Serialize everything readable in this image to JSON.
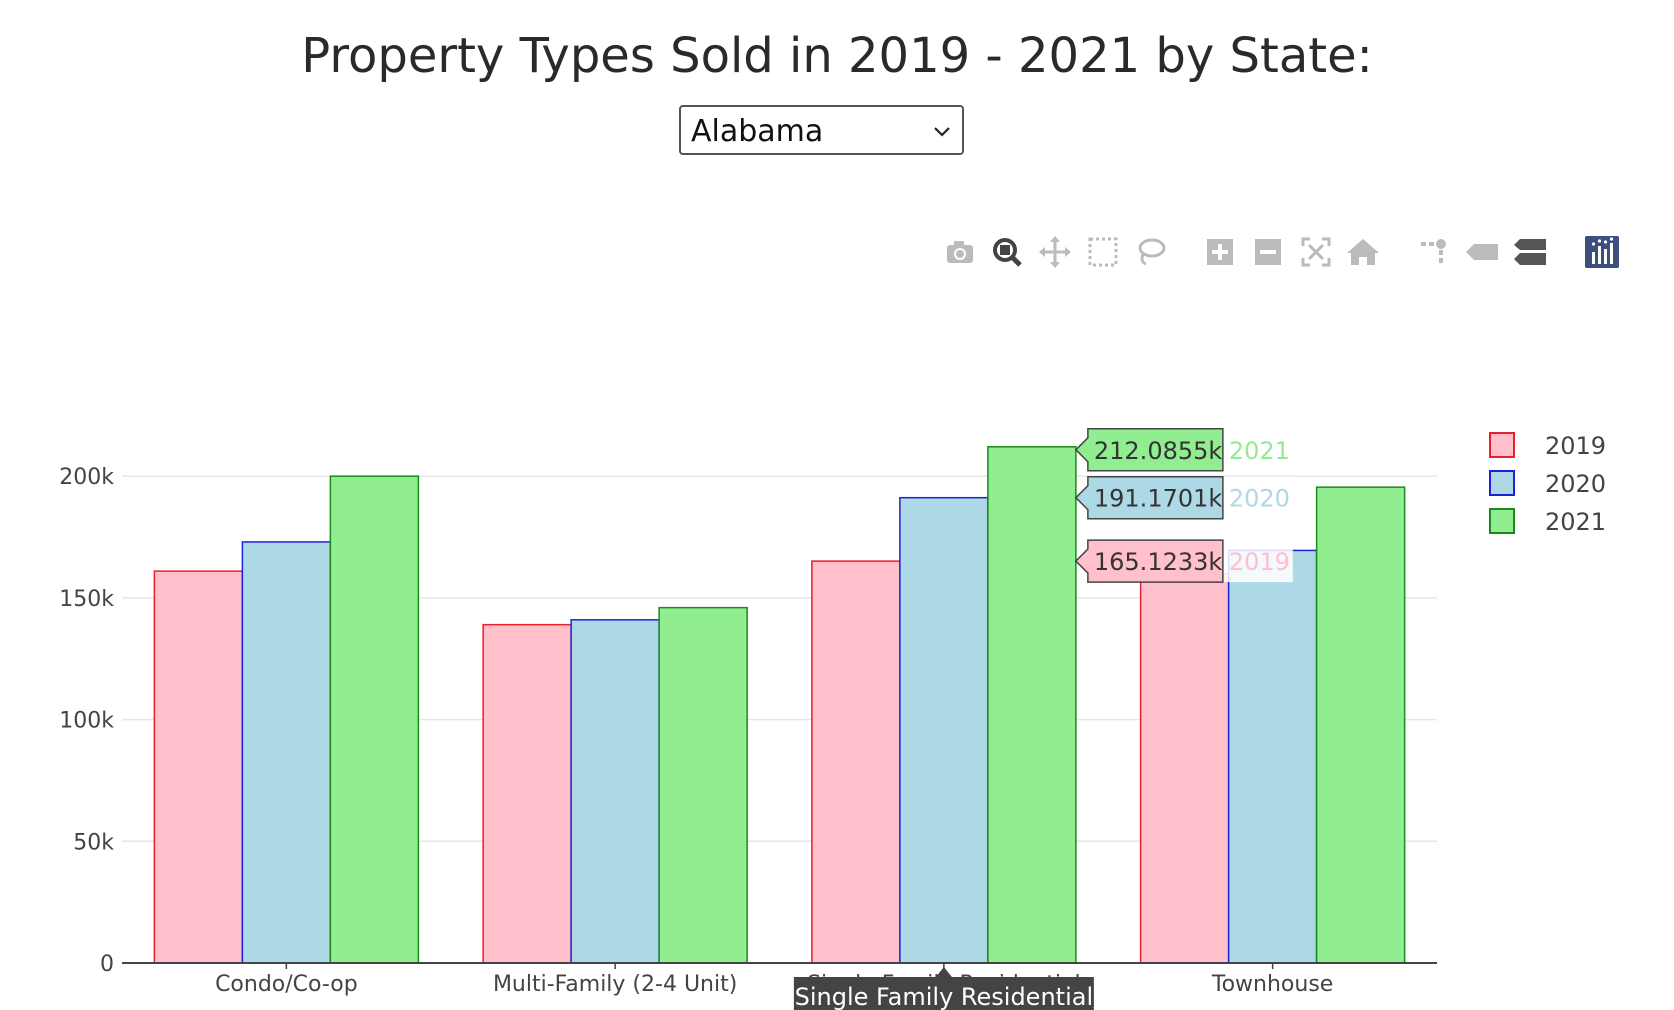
{
  "header": {
    "title": "Property Types Sold in 2019 - 2021 by State:"
  },
  "state_select": {
    "value": "Alabama"
  },
  "modebar": {
    "buttons": [
      {
        "name": "camera-icon",
        "active": false
      },
      {
        "name": "zoom-icon",
        "active": true
      },
      {
        "name": "pan-icon",
        "active": false
      },
      {
        "name": "box-select-icon",
        "active": false
      },
      {
        "name": "lasso-select-icon",
        "active": false
      },
      {
        "name": "zoom-in-icon",
        "active": false
      },
      {
        "name": "zoom-out-icon",
        "active": false
      },
      {
        "name": "autoscale-icon",
        "active": false
      },
      {
        "name": "reset-axes-icon",
        "active": false
      },
      {
        "name": "spike-lines-icon",
        "active": false
      },
      {
        "name": "hover-closest-icon",
        "active": false
      },
      {
        "name": "hover-compare-icon",
        "active": false
      },
      {
        "name": "plotly-logo-icon",
        "active": false
      }
    ]
  },
  "chart_data": {
    "type": "bar",
    "categories": [
      "Condo/Co-op",
      "Multi-Family (2-4 Unit)",
      "Single Family Residential",
      "Townhouse"
    ],
    "series": [
      {
        "name": "2019",
        "values": [
          161000,
          139000,
          165123.3,
          160000
        ],
        "fill": "#ffc0cb",
        "stroke": "#e8202a"
      },
      {
        "name": "2020",
        "values": [
          173000,
          141000,
          191170.1,
          169500
        ],
        "fill": "#add8e6",
        "stroke": "#2020e0"
      },
      {
        "name": "2021",
        "values": [
          200000,
          146000,
          212085.5,
          195500
        ],
        "fill": "#90ee90",
        "stroke": "#1a8a1a"
      }
    ],
    "yticks": [
      {
        "value": 0,
        "label": "0"
      },
      {
        "value": 50000,
        "label": "50k"
      },
      {
        "value": 100000,
        "label": "100k"
      },
      {
        "value": 150000,
        "label": "150k"
      },
      {
        "value": 200000,
        "label": "200k"
      }
    ],
    "ylim": [
      0,
      230000
    ],
    "grid": true,
    "legend_position": "top-right",
    "hover": {
      "category": "Single Family Residential",
      "labels": [
        {
          "series": "2021",
          "value_text": "212.0855k",
          "name_text": "2021",
          "text_color": "#90ee90"
        },
        {
          "series": "2020",
          "value_text": "191.1701k",
          "name_text": "2020",
          "text_color": "#add8e6"
        },
        {
          "series": "2019",
          "value_text": "165.1233k",
          "name_text": "2019",
          "text_color": "#ffc0cb"
        }
      ]
    }
  }
}
